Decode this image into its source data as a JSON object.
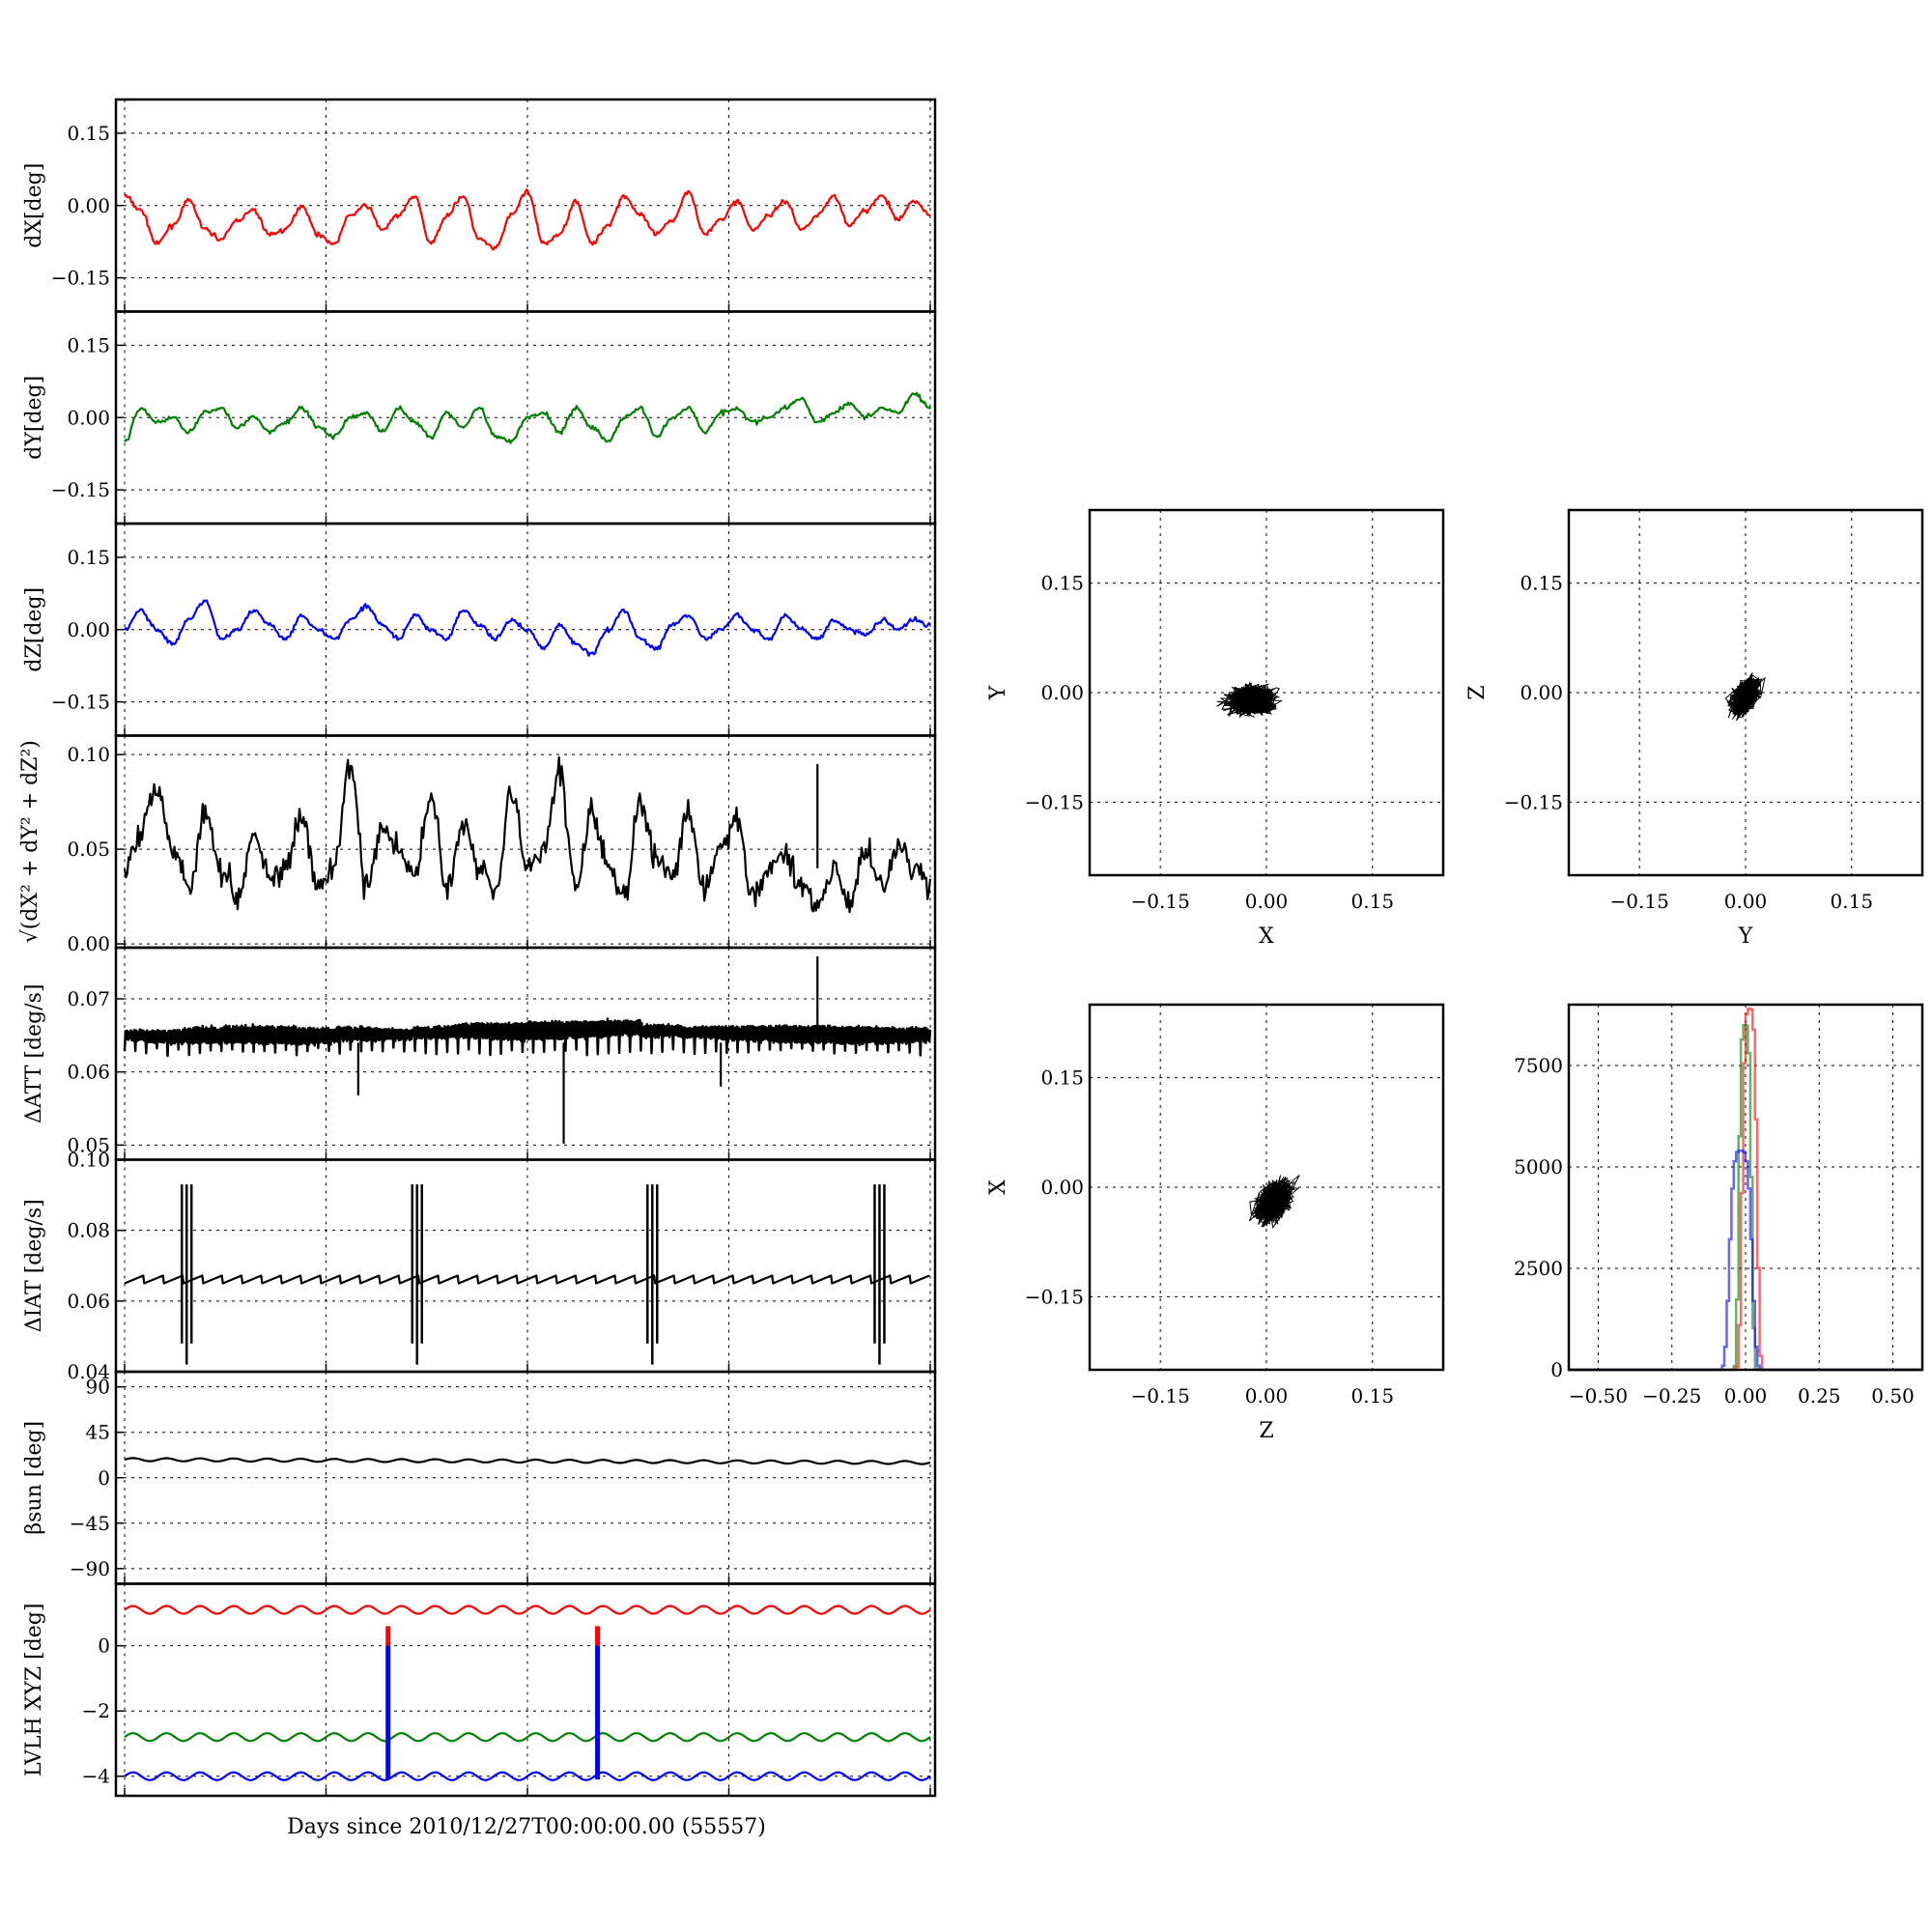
{
  "xlabel": "Days since 2010/12/27T00:00:00.00 (55557)",
  "chart_data": [
    {
      "type": "line",
      "ylabel": "dX[deg]",
      "ylim": [
        -0.22,
        0.22
      ],
      "yticks": [
        0.15,
        0.0,
        -0.15
      ],
      "ytick_labels": [
        "0.15",
        "0.00",
        "−0.15"
      ],
      "grid": true,
      "series": [
        {
          "color": "#ff0000",
          "values": [
            0.02,
            -0.01,
            -0.08,
            -0.04,
            0.01,
            -0.05,
            -0.07,
            -0.03,
            -0.01,
            -0.06,
            -0.05,
            0.0,
            -0.06,
            -0.08,
            -0.02,
            0.0,
            -0.05,
            -0.02,
            0.02,
            -0.08,
            -0.02,
            0.02,
            -0.07,
            -0.09,
            -0.02,
            0.03,
            -0.08,
            -0.06,
            0.01,
            -0.08,
            -0.04,
            0.02,
            -0.02,
            -0.06,
            -0.03,
            0.03,
            -0.06,
            -0.03,
            0.01,
            -0.05,
            -0.02,
            0.01,
            -0.05,
            -0.02,
            0.02,
            -0.04,
            -0.01,
            0.02,
            -0.03,
            0.01,
            -0.02
          ]
        }
      ]
    },
    {
      "type": "line",
      "ylabel": "dY[deg]",
      "ylim": [
        -0.22,
        0.22
      ],
      "yticks": [
        0.15,
        0.0,
        -0.15
      ],
      "ytick_labels": [
        "0.15",
        "0.00",
        "−0.15"
      ],
      "grid": true,
      "series": [
        {
          "color": "#008000",
          "values": [
            -0.05,
            0.02,
            -0.01,
            0.0,
            -0.03,
            0.01,
            0.02,
            -0.02,
            0.0,
            -0.03,
            -0.01,
            0.02,
            -0.02,
            -0.04,
            0.0,
            0.01,
            -0.03,
            0.02,
            -0.01,
            -0.04,
            0.01,
            -0.02,
            0.02,
            -0.04,
            -0.05,
            0.0,
            0.01,
            -0.03,
            0.02,
            -0.02,
            -0.05,
            0.0,
            0.02,
            -0.04,
            0.0,
            0.02,
            -0.03,
            0.01,
            0.02,
            -0.01,
            0.0,
            0.02,
            0.04,
            -0.01,
            0.01,
            0.03,
            0.0,
            0.02,
            0.01,
            0.05,
            0.02
          ]
        }
      ]
    },
    {
      "type": "line",
      "ylabel": "dZ[deg]",
      "ylim": [
        -0.22,
        0.22
      ],
      "yticks": [
        0.15,
        0.0,
        -0.15
      ],
      "ytick_labels": [
        "0.15",
        "0.00",
        "−0.15"
      ],
      "grid": true,
      "series": [
        {
          "color": "#0000ff",
          "values": [
            0.0,
            0.04,
            0.0,
            -0.03,
            0.02,
            0.06,
            -0.02,
            0.0,
            0.04,
            0.01,
            -0.02,
            0.03,
            0.0,
            -0.02,
            0.02,
            0.05,
            0.01,
            -0.02,
            0.03,
            0.0,
            -0.02,
            0.04,
            0.01,
            -0.02,
            0.02,
            0.0,
            -0.04,
            0.01,
            -0.03,
            -0.05,
            0.0,
            0.04,
            -0.02,
            -0.04,
            0.01,
            0.03,
            -0.02,
            0.0,
            0.03,
            0.0,
            -0.02,
            0.03,
            0.0,
            -0.02,
            0.02,
            0.0,
            -0.01,
            0.02,
            0.0,
            0.02,
            0.01
          ]
        }
      ]
    },
    {
      "type": "line",
      "ylabel": "√(dX² + dY² + dZ²)",
      "ylim": [
        -0.002,
        0.11
      ],
      "yticks": [
        0.1,
        0.05,
        0.0
      ],
      "ytick_labels": [
        "0.10",
        "0.05",
        "0.00"
      ],
      "grid": true,
      "series": [
        {
          "color": "#000000",
          "values": [
            0.04,
            0.06,
            0.085,
            0.05,
            0.03,
            0.07,
            0.04,
            0.025,
            0.06,
            0.035,
            0.04,
            0.065,
            0.03,
            0.04,
            0.095,
            0.03,
            0.06,
            0.05,
            0.035,
            0.08,
            0.03,
            0.065,
            0.04,
            0.03,
            0.08,
            0.04,
            0.05,
            0.09,
            0.03,
            0.07,
            0.04,
            0.025,
            0.075,
            0.045,
            0.035,
            0.07,
            0.03,
            0.05,
            0.065,
            0.025,
            0.04,
            0.05,
            0.03,
            0.02,
            0.04,
            0.02,
            0.05,
            0.03,
            0.05,
            0.04,
            0.03
          ]
        }
      ]
    },
    {
      "type": "line",
      "ylabel": "ΔATT [deg/s]",
      "ylim": [
        0.048,
        0.077
      ],
      "yticks": [
        0.07,
        0.06,
        0.05
      ],
      "ytick_labels": [
        "0.07",
        "0.06",
        "0.05"
      ],
      "grid": true,
      "series": [
        {
          "color": "#000000",
          "values": [
            0.065,
            0.0648,
            0.065,
            0.0651,
            0.065,
            0.0649,
            0.0652,
            0.0651,
            0.0654,
            0.0656,
            0.0655,
            0.0657,
            0.0658,
            0.066,
            0.0656,
            0.0654,
            0.0653,
            0.0652,
            0.0651,
            0.065,
            0.065,
            0.0651
          ]
        }
      ]
    },
    {
      "type": "line",
      "ylabel": "ΔIAT [deg/s]",
      "ylim": [
        0.04,
        0.1
      ],
      "yticks": [
        0.1,
        0.08,
        0.06,
        0.04
      ],
      "ytick_labels": [
        "0.10",
        "0.08",
        "0.06",
        "0.04"
      ],
      "grid": true,
      "series": [
        {
          "color": "#000000",
          "values": [
            0.065,
            0.067,
            0.065,
            0.067,
            0.065,
            0.067,
            0.065,
            0.067,
            0.065,
            0.067,
            0.065,
            0.067,
            0.065,
            0.067,
            0.065,
            0.067,
            0.065,
            0.067,
            0.065,
            0.067,
            0.065,
            0.067,
            0.065,
            0.067,
            0.065,
            0.067,
            0.065,
            0.067,
            0.065,
            0.067,
            0.065,
            0.067,
            0.065,
            0.067,
            0.065,
            0.067,
            0.065,
            0.067,
            0.065,
            0.067,
            0.066
          ]
        }
      ]
    },
    {
      "type": "line",
      "ylabel": "βsun [deg]",
      "ylim": [
        -105,
        105
      ],
      "yticks": [
        90,
        45,
        0,
        -45,
        -90
      ],
      "ytick_labels": [
        "90",
        "45",
        "0",
        "−45",
        "−90"
      ],
      "grid": true,
      "series": [
        {
          "color": "#000000",
          "values": [
            18,
            16,
            17,
            15
          ]
        }
      ]
    },
    {
      "type": "line",
      "ylabel": "LVLH XYZ [deg]",
      "ylim": [
        -4.6,
        1.9
      ],
      "yticks": [
        0,
        -2,
        -4
      ],
      "ytick_labels": [
        "0",
        "−2",
        "−4"
      ],
      "grid": true,
      "series": [
        {
          "color": "#ff0000",
          "values": [
            1.1,
            1.1
          ]
        },
        {
          "color": "#008000",
          "values": [
            -2.8,
            -2.8
          ]
        },
        {
          "color": "#0000ff",
          "values": [
            -4.0,
            -4.0
          ]
        }
      ]
    },
    {
      "type": "scatter",
      "xlabel": "X",
      "ylabel": "Y",
      "xlim": [
        -0.25,
        0.25
      ],
      "ylim": [
        -0.25,
        0.25
      ],
      "ticks": [
        -0.15,
        0.0,
        0.15
      ],
      "tick_labels": [
        "−0.15",
        "0.00",
        "0.15"
      ],
      "grid": true,
      "center": [
        -0.02,
        -0.01
      ],
      "spread": [
        0.035,
        0.02
      ],
      "corr": 0.0
    },
    {
      "type": "scatter",
      "xlabel": "Y",
      "ylabel": "Z",
      "xlim": [
        -0.25,
        0.25
      ],
      "ylim": [
        -0.25,
        0.25
      ],
      "ticks": [
        -0.15,
        0.0,
        0.15
      ],
      "tick_labels": [
        "−0.15",
        "0.00",
        "0.15"
      ],
      "grid": true,
      "center": [
        0.0,
        -0.005
      ],
      "spread": [
        0.02,
        0.025
      ],
      "corr": 0.5
    },
    {
      "type": "scatter",
      "xlabel": "Z",
      "ylabel": "X",
      "xlim": [
        -0.25,
        0.25
      ],
      "ylim": [
        -0.25,
        0.25
      ],
      "ticks": [
        -0.15,
        0.0,
        0.15
      ],
      "tick_labels": [
        "−0.15",
        "0.00",
        "0.15"
      ],
      "grid": true,
      "center": [
        0.01,
        -0.02
      ],
      "spread": [
        0.025,
        0.03
      ],
      "corr": 0.45
    },
    {
      "type": "histogram",
      "xlim": [
        -0.6,
        0.6
      ],
      "ylim": [
        0,
        9000
      ],
      "xticks": [
        -0.5,
        -0.25,
        0.0,
        0.25,
        0.5
      ],
      "xtick_labels": [
        "−0.50",
        "−0.25",
        "0.00",
        "0.25",
        "0.50"
      ],
      "yticks": [
        7500,
        5000,
        2500,
        0
      ],
      "ytick_labels": [
        "7500",
        "5000",
        "2500",
        "0"
      ],
      "grid": true,
      "series": [
        {
          "color": "#ff0000",
          "center": 0.01,
          "width": 0.02,
          "peak": 8900
        },
        {
          "color": "#008000",
          "center": -0.005,
          "width": 0.017,
          "peak": 8500
        },
        {
          "color": "#0000ff",
          "center": -0.02,
          "width": 0.03,
          "peak": 5400
        }
      ]
    }
  ]
}
